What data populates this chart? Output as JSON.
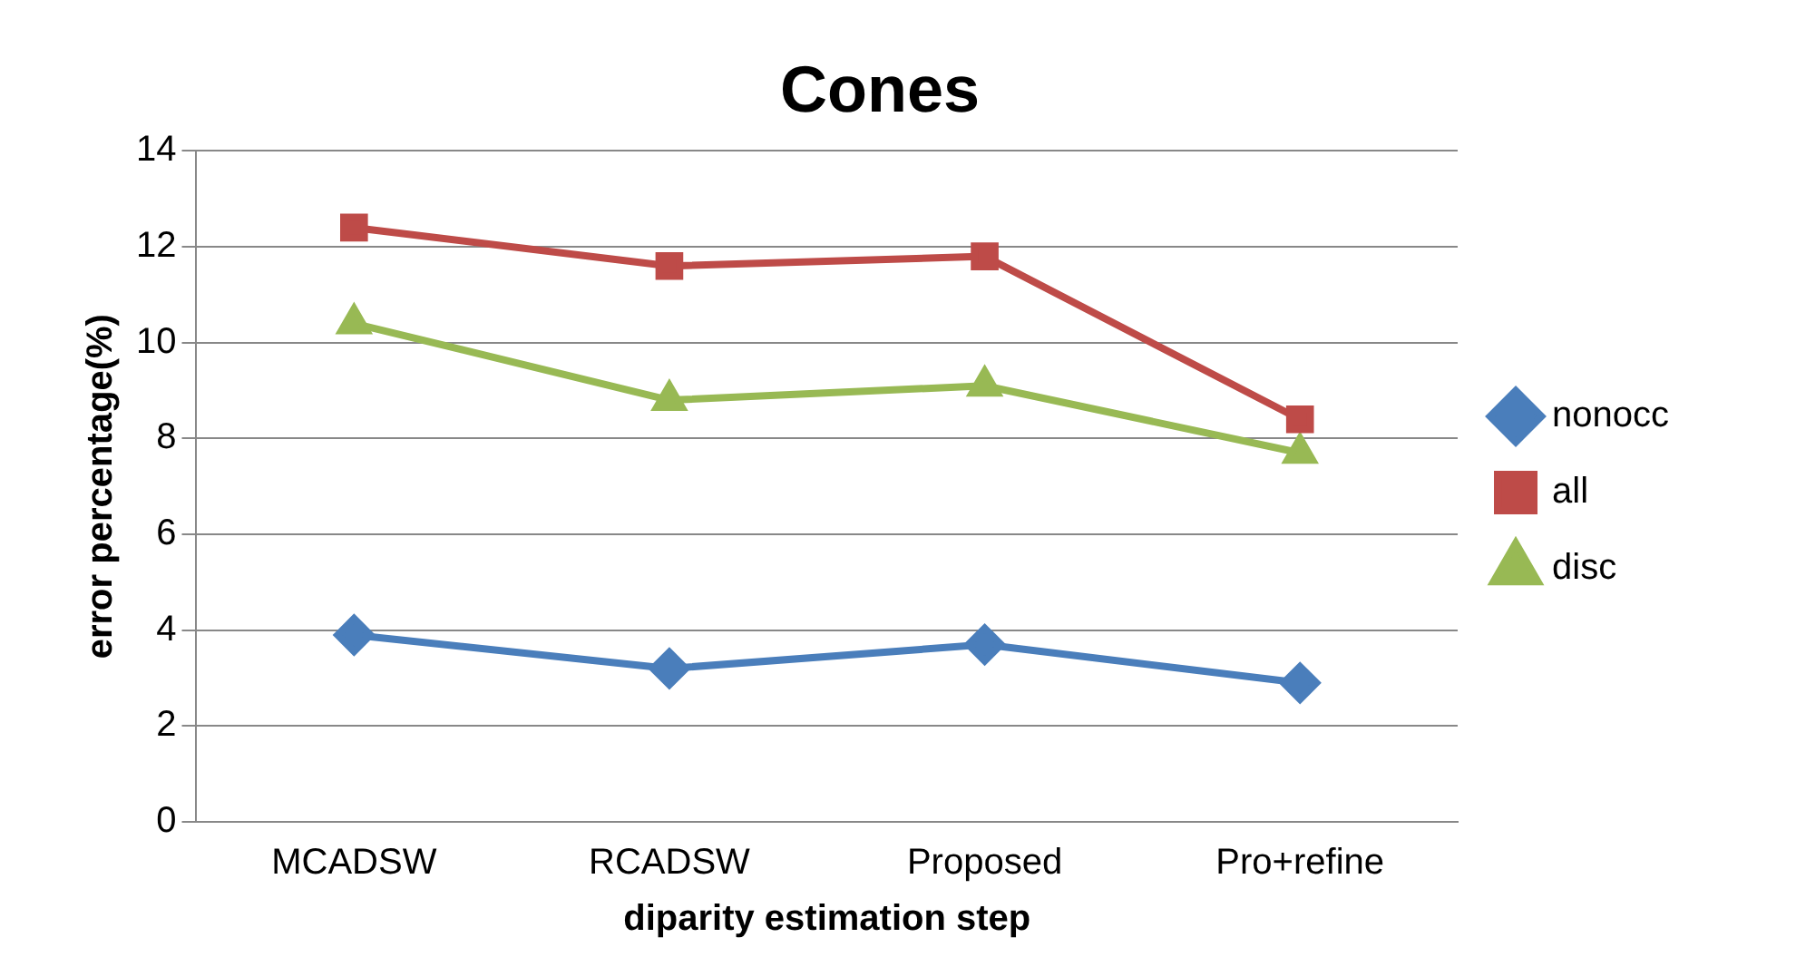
{
  "chart_data": {
    "type": "line",
    "title": "Cones",
    "xlabel": "diparity estimation step",
    "ylabel": "error percentage(%)",
    "categories": [
      "MCADSW",
      "RCADSW",
      "Proposed",
      "Pro+refine"
    ],
    "series": [
      {
        "name": "nonocc",
        "color": "#4a7ebb",
        "marker": "diamond",
        "values": [
          3.9,
          3.2,
          3.7,
          2.9
        ]
      },
      {
        "name": "all",
        "color": "#be4b48",
        "marker": "square",
        "values": [
          12.4,
          11.6,
          11.8,
          8.4
        ]
      },
      {
        "name": "disc",
        "color": "#98b954",
        "marker": "triangle",
        "values": [
          10.4,
          8.8,
          9.1,
          7.7
        ]
      }
    ],
    "ylim": [
      0,
      14
    ],
    "yticks": [
      0,
      2,
      4,
      6,
      8,
      10,
      12,
      14
    ],
    "grid": "y",
    "legend": "right"
  }
}
